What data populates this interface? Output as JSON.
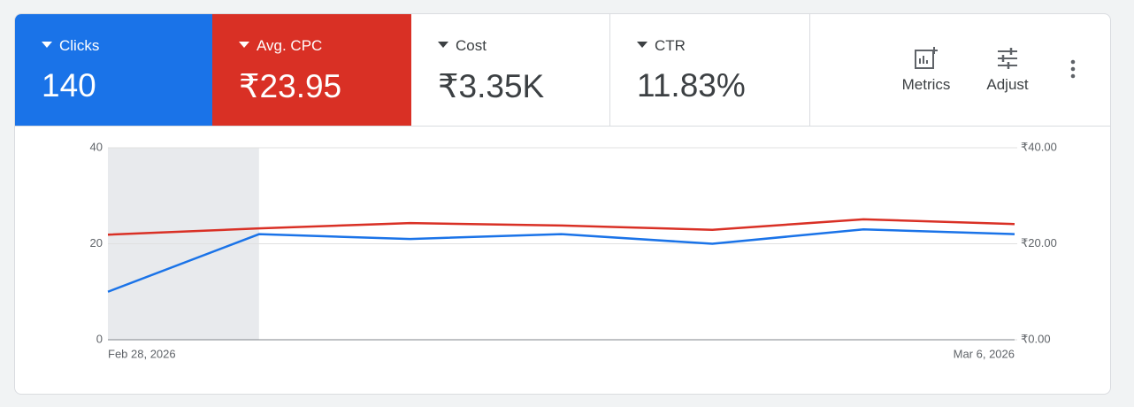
{
  "chart_data": {
    "type": "line",
    "categories": [
      "Feb 28, 2026",
      null,
      null,
      null,
      null,
      null,
      "Mar 6, 2026"
    ],
    "series": [
      {
        "name": "Clicks",
        "summary": "140",
        "color": "#1a73e8",
        "values": [
          10,
          22,
          21,
          22,
          20,
          23,
          22
        ]
      },
      {
        "name": "Avg. CPC",
        "summary": "₹23.95",
        "color": "#d93025",
        "axis": "y2",
        "values": [
          21.9,
          23.2,
          24.3,
          23.8,
          22.9,
          25.1,
          24.1
        ]
      }
    ],
    "ylim": [
      0,
      40
    ],
    "yticks": [
      0,
      20,
      40
    ],
    "y2lim": [
      0,
      40
    ],
    "y2ticks": [
      {
        "value": 0,
        "label": "₹0.00"
      },
      {
        "value": 20,
        "label": "₹20.00"
      },
      {
        "value": 40,
        "label": "₹40.00"
      }
    ],
    "grid": true
  },
  "scorecards": [
    {
      "label": "Cost",
      "value": "₹3.35K"
    },
    {
      "label": "CTR",
      "value": "11.83%"
    }
  ],
  "toolbar": {
    "metrics": "Metrics",
    "adjust": "Adjust"
  }
}
